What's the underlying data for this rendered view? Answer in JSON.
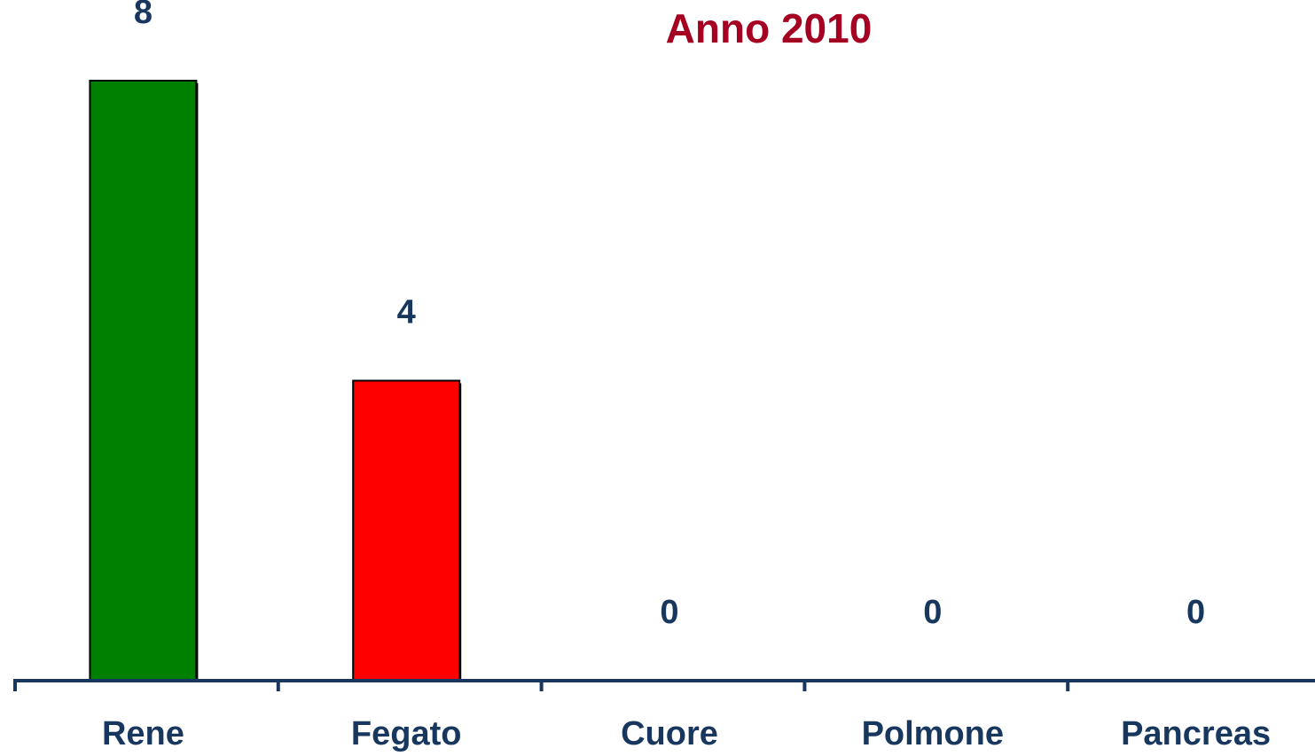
{
  "chart_data": {
    "type": "bar",
    "title": "Anno 2010",
    "categories": [
      "Rene",
      "Fegato",
      "Cuore",
      "Polmone",
      "Pancreas"
    ],
    "values": [
      8,
      4,
      0,
      0,
      0
    ],
    "colors": [
      "#008000",
      "#ff0000"
    ],
    "ylim": [
      0,
      8
    ]
  }
}
